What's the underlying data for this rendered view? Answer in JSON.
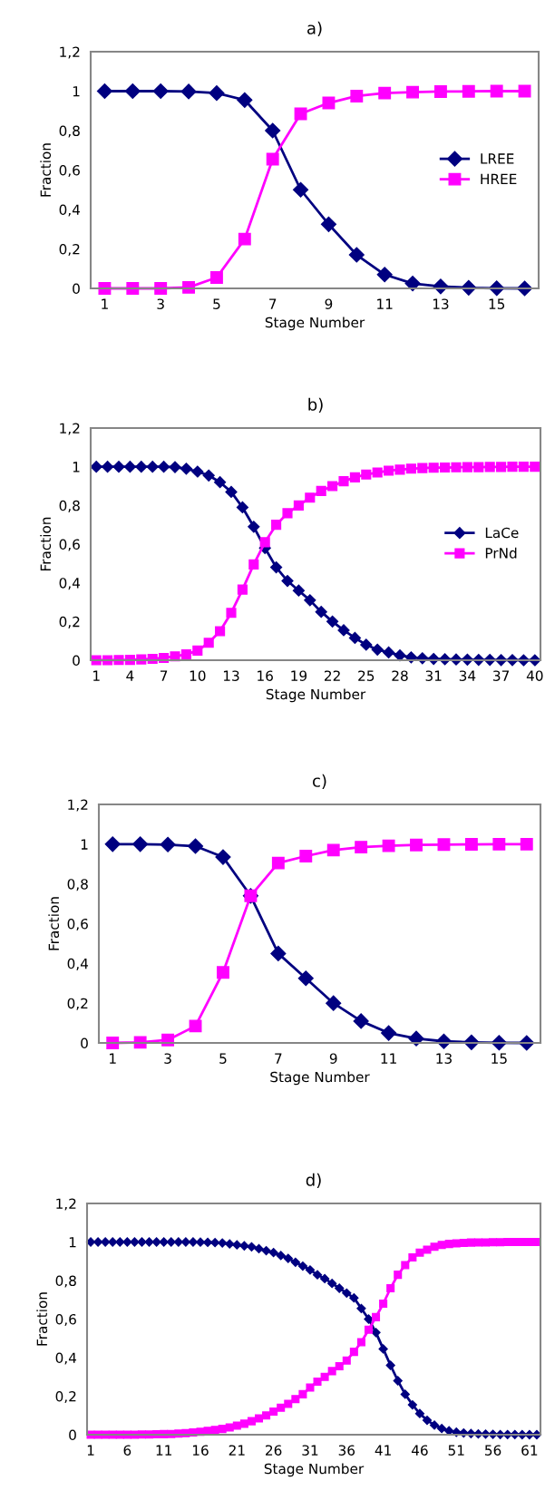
{
  "chart_data": [
    {
      "type": "line",
      "title": "a)",
      "xlabel": "Stage Number",
      "ylabel": "Fraction",
      "legend": "right",
      "grid": false,
      "x": [
        1,
        2,
        3,
        4,
        5,
        6,
        7,
        8,
        9,
        10,
        11,
        12,
        13,
        14,
        15,
        16
      ],
      "xlim": [
        0.5,
        16.5
      ],
      "xticks": [
        1,
        3,
        5,
        7,
        9,
        11,
        13,
        15
      ],
      "ylim": [
        0,
        1.2
      ],
      "yticks": [
        0,
        {
          "value": 0.2,
          "label": "0,2"
        },
        {
          "value": 0.4,
          "label": "0,4"
        },
        {
          "value": 0.6,
          "label": "0,6"
        },
        {
          "value": 0.8,
          "label": "0,8"
        },
        1,
        {
          "value": 1.2,
          "label": "1,2"
        }
      ],
      "series": [
        {
          "name": "LREE",
          "color": "#000080",
          "marker": "diamond",
          "values": [
            1,
            1,
            1,
            0.998,
            0.99,
            0.955,
            0.8,
            0.5,
            0.325,
            0.17,
            0.07,
            0.025,
            0.01,
            0.003,
            0.001,
            0
          ]
        },
        {
          "name": "HREE",
          "color": "#ff00ff",
          "marker": "square",
          "values": [
            0,
            0,
            0,
            0.005,
            0.055,
            0.25,
            0.655,
            0.885,
            0.94,
            0.975,
            0.99,
            0.995,
            0.998,
            0.999,
            1,
            1
          ]
        }
      ]
    },
    {
      "type": "line",
      "title": "b)",
      "xlabel": "Stage Number",
      "ylabel": "Fraction",
      "legend": "right",
      "grid": false,
      "x": [
        1,
        2,
        3,
        4,
        5,
        6,
        7,
        8,
        9,
        10,
        11,
        12,
        13,
        14,
        15,
        16,
        17,
        18,
        19,
        20,
        21,
        22,
        23,
        24,
        25,
        26,
        27,
        28,
        29,
        30,
        31,
        32,
        33,
        34,
        35,
        36,
        37,
        38,
        39,
        40
      ],
      "xlim": [
        0.5,
        40.5
      ],
      "xticks": [
        1,
        4,
        7,
        10,
        13,
        16,
        19,
        22,
        25,
        28,
        31,
        34,
        37,
        40
      ],
      "ylim": [
        0,
        1.2
      ],
      "yticks": [
        0,
        {
          "value": 0.2,
          "label": "0,2"
        },
        {
          "value": 0.4,
          "label": "0,4"
        },
        {
          "value": 0.6,
          "label": "0,6"
        },
        {
          "value": 0.8,
          "label": "0,8"
        },
        1,
        {
          "value": 1.2,
          "label": "1,2"
        }
      ],
      "series": [
        {
          "name": "LaCe",
          "color": "#000080",
          "marker": "diamond",
          "values": [
            1,
            1,
            1,
            1,
            1,
            1,
            1,
            0.998,
            0.99,
            0.975,
            0.955,
            0.92,
            0.87,
            0.79,
            0.69,
            0.58,
            0.48,
            0.41,
            0.36,
            0.31,
            0.25,
            0.2,
            0.155,
            0.115,
            0.08,
            0.055,
            0.04,
            0.025,
            0.015,
            0.01,
            0.007,
            0.005,
            0.004,
            0.003,
            0.002,
            0.002,
            0.001,
            0.001,
            0,
            0
          ]
        },
        {
          "name": "PrNd",
          "color": "#ff00ff",
          "marker": "square",
          "values": [
            0,
            0,
            0.001,
            0.002,
            0.004,
            0.007,
            0.012,
            0.02,
            0.03,
            0.05,
            0.09,
            0.15,
            0.245,
            0.365,
            0.495,
            0.61,
            0.7,
            0.76,
            0.8,
            0.84,
            0.875,
            0.9,
            0.925,
            0.945,
            0.96,
            0.97,
            0.98,
            0.985,
            0.99,
            0.993,
            0.995,
            0.996,
            0.997,
            0.998,
            0.998,
            0.999,
            0.999,
            1,
            1,
            1
          ]
        }
      ]
    },
    {
      "type": "line",
      "title": "c)",
      "xlabel": "Stage Number",
      "ylabel": "Fraction",
      "grid": false,
      "x": [
        1,
        2,
        3,
        4,
        5,
        6,
        7,
        8,
        9,
        10,
        11,
        12,
        13,
        14,
        15,
        16
      ],
      "xlim": [
        0.5,
        16.5
      ],
      "xticks": [
        1,
        3,
        5,
        7,
        9,
        11,
        13,
        15
      ],
      "ylim": [
        0,
        1.2
      ],
      "yticks": [
        0,
        {
          "value": 0.2,
          "label": "0,2"
        },
        {
          "value": 0.4,
          "label": "0,4"
        },
        {
          "value": 0.6,
          "label": "0,6"
        },
        {
          "value": 0.8,
          "label": "0,8"
        },
        1,
        {
          "value": 1.2,
          "label": "1,2"
        }
      ],
      "series": [
        {
          "color": "#000080",
          "marker": "diamond",
          "values": [
            1,
            1,
            0.998,
            0.99,
            0.935,
            0.74,
            0.45,
            0.325,
            0.2,
            0.11,
            0.05,
            0.022,
            0.008,
            0.003,
            0.001,
            0
          ]
        },
        {
          "color": "#ff00ff",
          "marker": "square",
          "values": [
            0,
            0.003,
            0.015,
            0.085,
            0.355,
            0.74,
            0.905,
            0.94,
            0.97,
            0.985,
            0.992,
            0.996,
            0.998,
            0.999,
            1,
            1
          ]
        }
      ]
    },
    {
      "type": "line",
      "title": "d)",
      "xlabel": "Stage Number",
      "ylabel": "Fraction",
      "grid": false,
      "x": [
        1,
        2,
        3,
        4,
        5,
        6,
        7,
        8,
        9,
        10,
        11,
        12,
        13,
        14,
        15,
        16,
        17,
        18,
        19,
        20,
        21,
        22,
        23,
        24,
        25,
        26,
        27,
        28,
        29,
        30,
        31,
        32,
        33,
        34,
        35,
        36,
        37,
        38,
        39,
        40,
        41,
        42,
        43,
        44,
        45,
        46,
        47,
        48,
        49,
        50,
        51,
        52,
        53,
        54,
        55,
        56,
        57,
        58,
        59,
        60,
        61,
        62
      ],
      "xlim": [
        0.5,
        62.5
      ],
      "xticks": [
        1,
        6,
        11,
        16,
        21,
        26,
        31,
        36,
        41,
        46,
        51,
        56,
        61
      ],
      "ylim": [
        0,
        1.2
      ],
      "yticks": [
        0,
        {
          "value": 0.2,
          "label": "0,2"
        },
        {
          "value": 0.4,
          "label": "0,4"
        },
        {
          "value": 0.6,
          "label": "0,6"
        },
        {
          "value": 0.8,
          "label": "0,8"
        },
        1,
        {
          "value": 1.2,
          "label": "1,2"
        }
      ],
      "series": [
        {
          "color": "#000080",
          "marker": "diamond",
          "values": [
            1,
            1,
            1,
            1,
            1,
            1,
            1,
            1,
            1,
            1,
            1,
            1,
            1,
            1,
            1,
            0.999,
            0.998,
            0.997,
            0.995,
            0.99,
            0.985,
            0.98,
            0.975,
            0.965,
            0.955,
            0.945,
            0.93,
            0.915,
            0.895,
            0.875,
            0.855,
            0.83,
            0.81,
            0.785,
            0.76,
            0.735,
            0.71,
            0.655,
            0.6,
            0.53,
            0.445,
            0.36,
            0.28,
            0.21,
            0.155,
            0.11,
            0.075,
            0.05,
            0.032,
            0.02,
            0.013,
            0.009,
            0.006,
            0.004,
            0.003,
            0.002,
            0.001,
            0.001,
            0.001,
            0,
            0,
            0
          ]
        },
        {
          "color": "#ff00ff",
          "marker": "square",
          "values": [
            0,
            0,
            0,
            0,
            0,
            0,
            0,
            0.001,
            0.001,
            0.002,
            0.003,
            0.004,
            0.006,
            0.008,
            0.012,
            0.015,
            0.02,
            0.025,
            0.03,
            0.038,
            0.047,
            0.057,
            0.07,
            0.085,
            0.1,
            0.12,
            0.14,
            0.16,
            0.185,
            0.21,
            0.245,
            0.275,
            0.3,
            0.33,
            0.355,
            0.385,
            0.43,
            0.48,
            0.545,
            0.61,
            0.68,
            0.76,
            0.83,
            0.88,
            0.92,
            0.945,
            0.96,
            0.975,
            0.985,
            0.99,
            0.993,
            0.995,
            0.997,
            0.998,
            0.998,
            0.999,
            0.999,
            1,
            1,
            1,
            1,
            1
          ]
        }
      ]
    }
  ]
}
